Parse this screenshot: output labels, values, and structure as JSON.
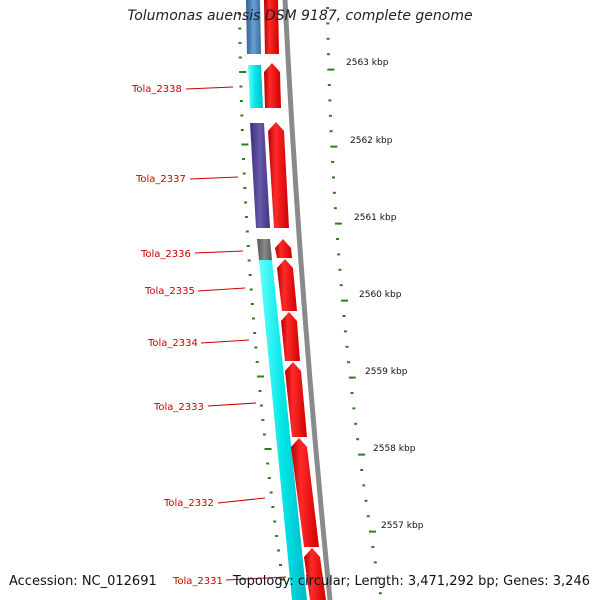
{
  "title": "Tolumonas auensis DSM 9187, complete genome",
  "footer": {
    "accession": "Accession: NC_012691",
    "topology": "Topology: circular; Length: 3,471,292 bp; Genes: 3,246"
  },
  "colors": {
    "gene_forward": "#ff0000",
    "cds_cyan": "#00e5e5",
    "cds_purple": "#5a4a9a",
    "cds_blue": "#4a7fb5",
    "cds_gray": "#707070",
    "backbone": "#888888",
    "tick": "#2e7d1e",
    "label": "#cc0000"
  },
  "scale_labels": [
    "2563 kbp",
    "2562 kbp",
    "2561 kbp",
    "2560 kbp",
    "2559 kbp",
    "2558 kbp",
    "2557 kbp"
  ],
  "genes": [
    {
      "label": "Tola_2338"
    },
    {
      "label": "Tola_2337"
    },
    {
      "label": "Tola_2336"
    },
    {
      "label": "Tola_2335"
    },
    {
      "label": "Tola_2334"
    },
    {
      "label": "Tola_2333"
    },
    {
      "label": "Tola_2332"
    },
    {
      "label": "Tola_2331"
    }
  ]
}
